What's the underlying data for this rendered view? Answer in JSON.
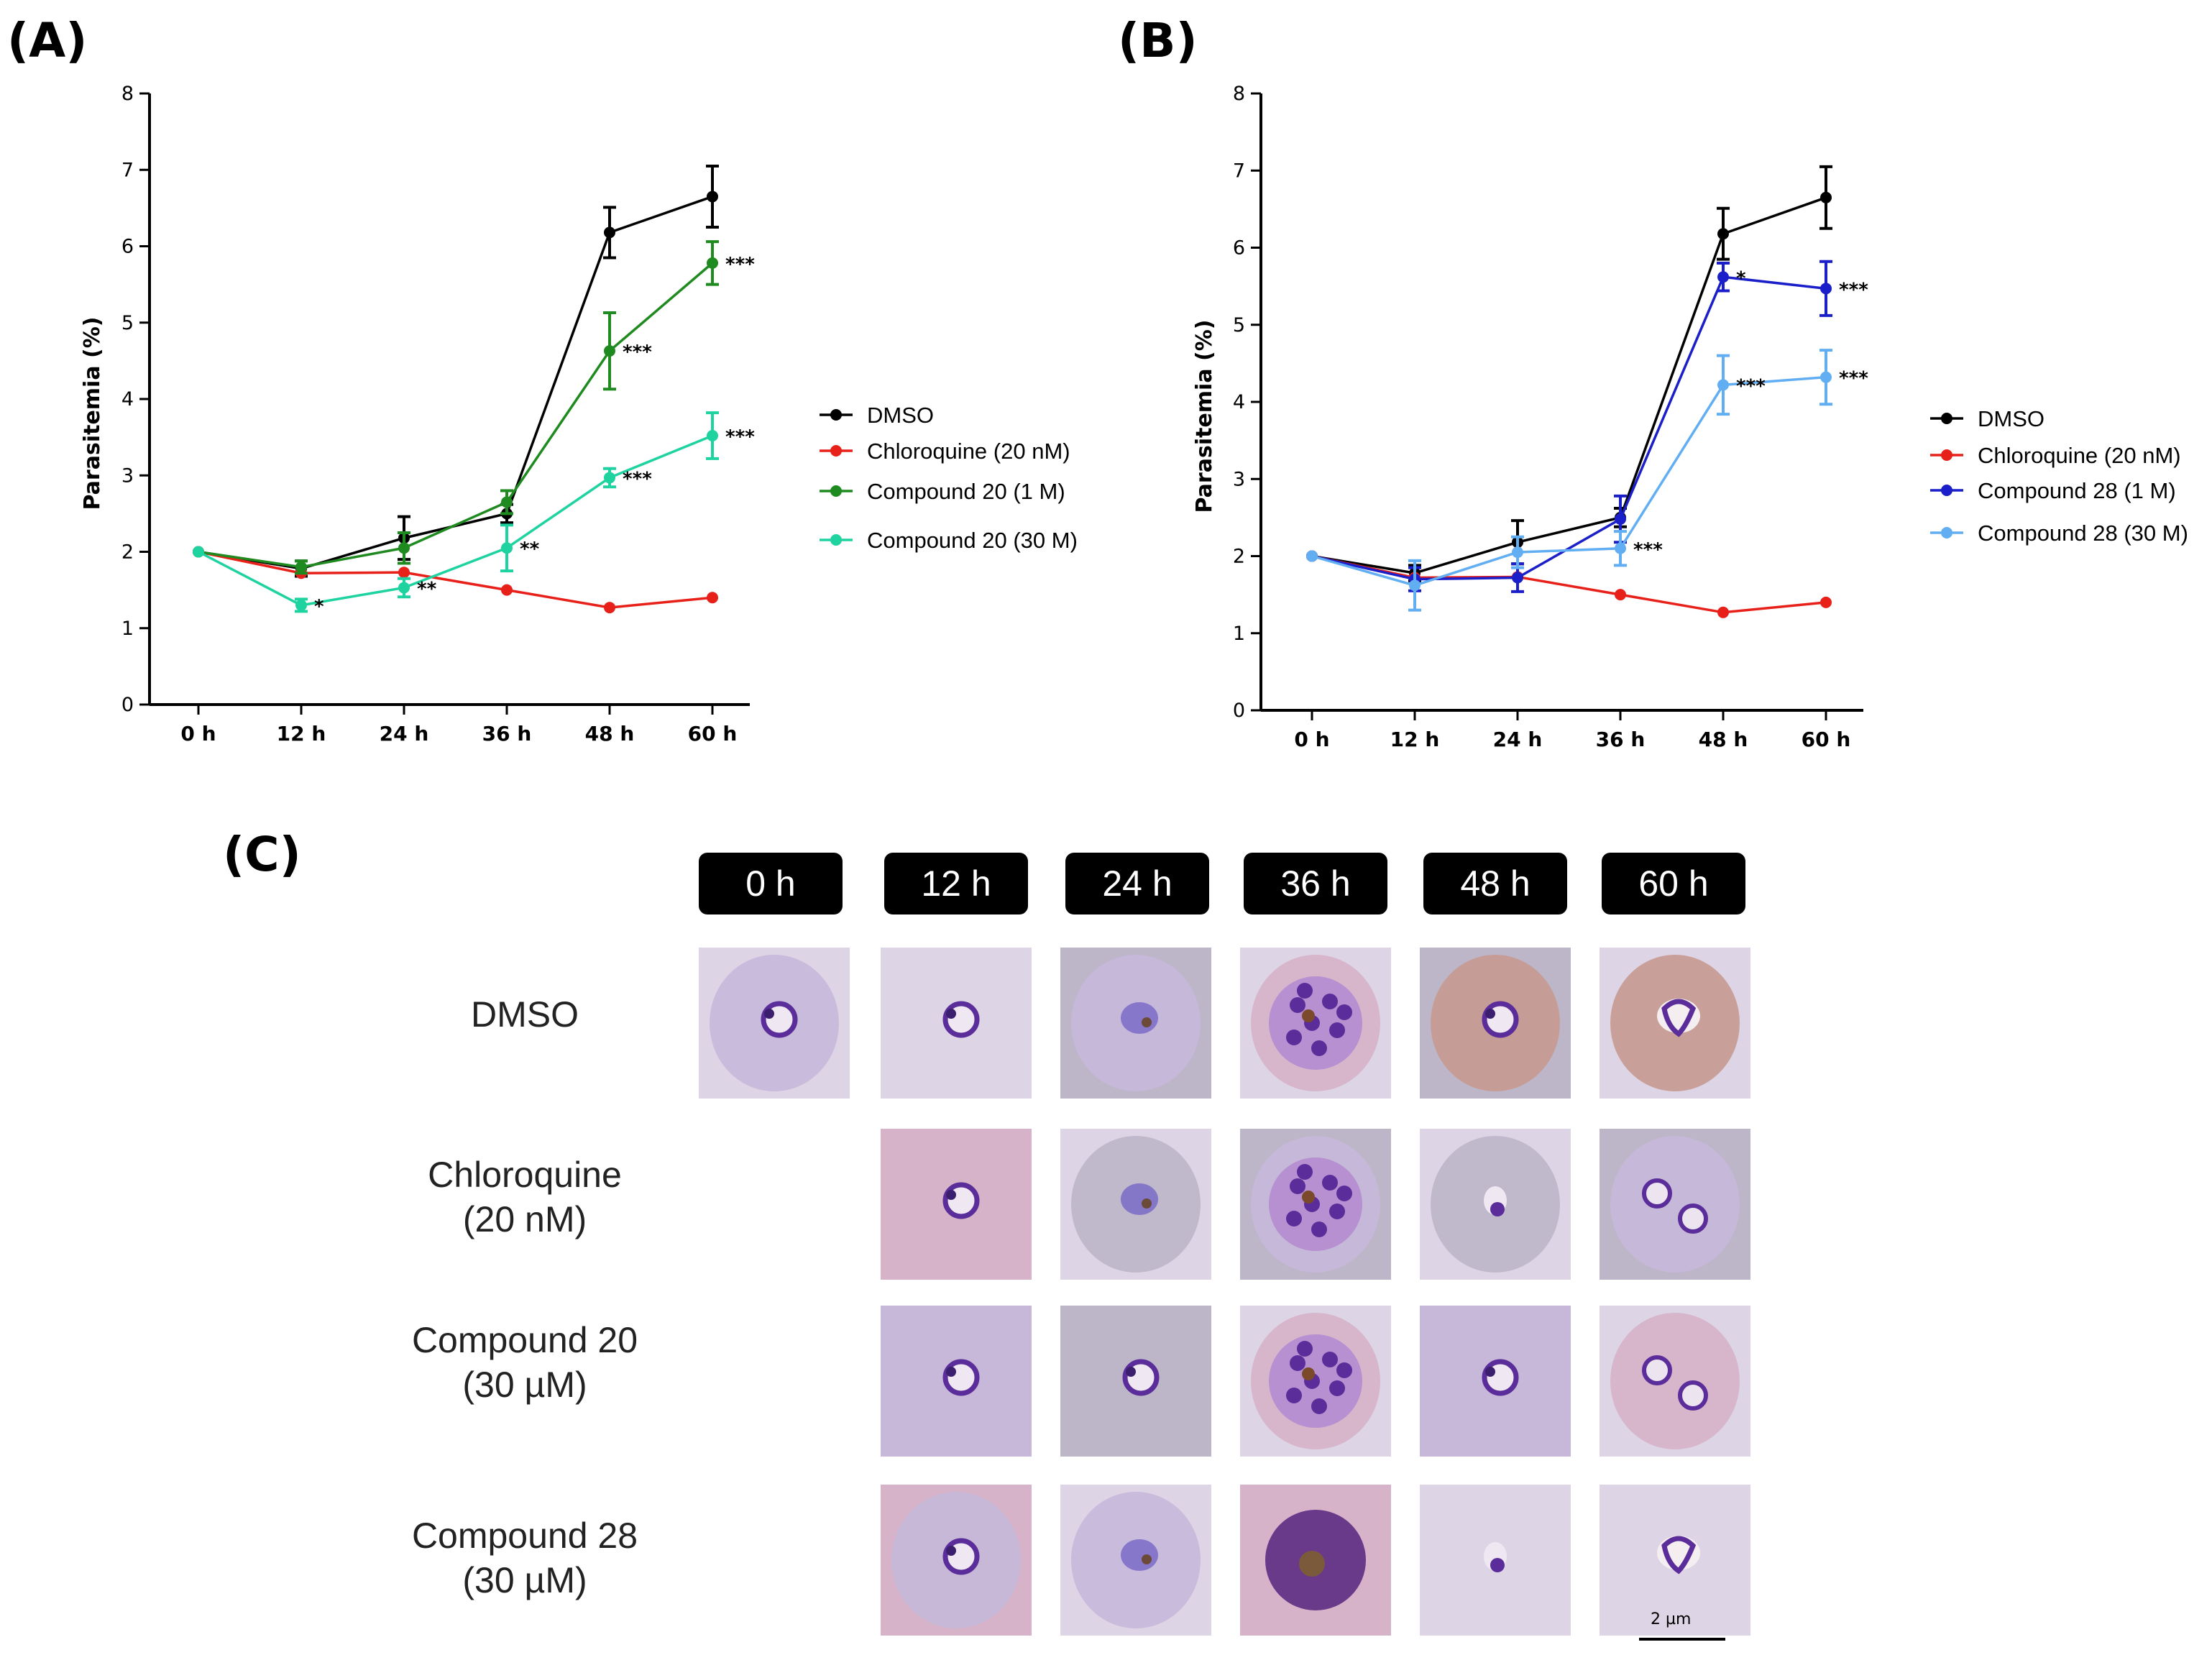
{
  "panels": {
    "a": "(A)",
    "b": "(B)",
    "c": "(C)"
  },
  "chart_data": [
    {
      "type": "line",
      "panel": "A",
      "ylabel": "Parasitemia (%)",
      "xlabel": "",
      "categories": [
        "0 h",
        "12 h",
        "24 h",
        "36 h",
        "48 h",
        "60 h"
      ],
      "ylim": [
        0,
        8
      ],
      "yticks": [
        0,
        1,
        2,
        3,
        4,
        5,
        6,
        7,
        8
      ],
      "legend_position": "right",
      "series": [
        {
          "name": "DMSO",
          "color": "#000000",
          "values": [
            2.0,
            1.78,
            2.18,
            2.5,
            6.18,
            6.65
          ],
          "err": [
            0,
            0.1,
            0.28,
            0.12,
            0.33,
            0.4
          ]
        },
        {
          "name": "Chloroquine (20 nM)",
          "color": "#e8201a",
          "values": [
            2.0,
            1.72,
            1.73,
            1.5,
            1.27,
            1.4
          ],
          "err": [
            0,
            0,
            0,
            0,
            0,
            0
          ]
        },
        {
          "name": "Compound 20 (1 M)",
          "color": "#1f8a1f",
          "values": [
            2.0,
            1.8,
            2.05,
            2.65,
            4.63,
            5.78
          ],
          "err": [
            0,
            0.08,
            0.2,
            0.15,
            0.5,
            0.28
          ]
        },
        {
          "name": "Compound 20 (30 M)",
          "color": "#1ed3a0",
          "values": [
            2.0,
            1.3,
            1.53,
            2.05,
            2.97,
            3.52
          ],
          "err": [
            0,
            0.08,
            0.12,
            0.3,
            0.12,
            0.3
          ]
        }
      ],
      "annotations": [
        {
          "text": "*",
          "series": 3,
          "index": 1
        },
        {
          "text": "**",
          "series": 3,
          "index": 2
        },
        {
          "text": "**",
          "series": 3,
          "index": 3
        },
        {
          "text": "***",
          "series": 2,
          "index": 4
        },
        {
          "text": "***",
          "series": 2,
          "index": 5
        },
        {
          "text": "***",
          "series": 3,
          "index": 4
        },
        {
          "text": "***",
          "series": 3,
          "index": 5
        }
      ]
    },
    {
      "type": "line",
      "panel": "B",
      "ylabel": "Parasitemia (%)",
      "xlabel": "",
      "categories": [
        "0 h",
        "12 h",
        "24 h",
        "36 h",
        "48 h",
        "60 h"
      ],
      "ylim": [
        0,
        8
      ],
      "yticks": [
        0,
        1,
        2,
        3,
        4,
        5,
        6,
        7,
        8
      ],
      "legend_position": "right",
      "series": [
        {
          "name": "DMSO",
          "color": "#000000",
          "values": [
            2.0,
            1.78,
            2.18,
            2.5,
            6.18,
            6.65
          ],
          "err": [
            0,
            0.1,
            0.28,
            0.12,
            0.33,
            0.4
          ]
        },
        {
          "name": "Chloroquine (20 nM)",
          "color": "#e8201a",
          "values": [
            2.0,
            1.72,
            1.73,
            1.5,
            1.27,
            1.4
          ],
          "err": [
            0,
            0,
            0,
            0,
            0,
            0
          ]
        },
        {
          "name": "Compound 28 (1 M)",
          "color": "#1a1fc9",
          "values": [
            2.0,
            1.7,
            1.72,
            2.48,
            5.62,
            5.47
          ],
          "err": [
            0,
            0.15,
            0.18,
            0.3,
            0.18,
            0.35
          ]
        },
        {
          "name": "Compound 28 (30 M)",
          "color": "#62aef2",
          "values": [
            2.0,
            1.62,
            2.05,
            2.1,
            4.22,
            4.32
          ],
          "err": [
            0,
            0.32,
            0.2,
            0.22,
            0.38,
            0.35
          ]
        }
      ],
      "annotations": [
        {
          "text": "*",
          "series": 2,
          "index": 4
        },
        {
          "text": "***",
          "series": 2,
          "index": 5
        },
        {
          "text": "***",
          "series": 3,
          "index": 3
        },
        {
          "text": "***",
          "series": 3,
          "index": 4
        },
        {
          "text": "***",
          "series": 3,
          "index": 5
        }
      ]
    }
  ],
  "micrographs": {
    "times": [
      "0 h",
      "12 h",
      "24 h",
      "36 h",
      "48 h",
      "60 h"
    ],
    "rows": [
      {
        "label_lines": [
          "DMSO"
        ]
      },
      {
        "label_lines": [
          "Chloroquine",
          "(20 nM)"
        ]
      },
      {
        "label_lines": [
          "Compound 20",
          "(30 µM)"
        ]
      },
      {
        "label_lines": [
          "Compound 28",
          "(30 µM)"
        ]
      }
    ],
    "scale_bar_label": "2 µm",
    "colors": {
      "pale": "#ddd4e6",
      "gray": "#bdb6c8",
      "lilac": "#c7b8d9",
      "pink": "#d6b3c9",
      "tan": "#c79a90",
      "parasite": "#5a2d9a",
      "dark": "#3b1f6e"
    }
  }
}
